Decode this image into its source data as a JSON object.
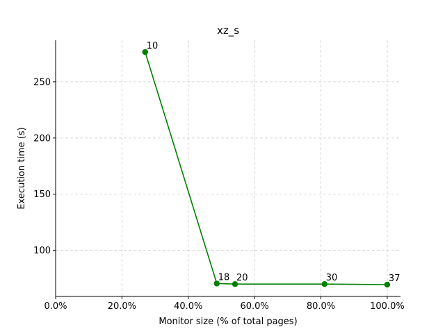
{
  "chart_data": {
    "type": "line",
    "title": "xz_s",
    "xlabel": "Monitor size (% of total pages)",
    "ylabel": "Execution time (s)",
    "xlim": [
      0,
      104
    ],
    "ylim": [
      59,
      287
    ],
    "x_ticks": [
      0,
      20,
      40,
      60,
      80,
      100
    ],
    "x_tick_labels": [
      "0.0%",
      "20.0%",
      "40.0%",
      "60.0%",
      "80.0%",
      "100.0%"
    ],
    "y_ticks": [
      100,
      150,
      200,
      250
    ],
    "y_tick_labels": [
      "100",
      "150",
      "200",
      "250"
    ],
    "grid": true,
    "series": [
      {
        "color": "#008000",
        "x": [
          27.0,
          48.6,
          54.1,
          81.1,
          100.0
        ],
        "y": [
          276.5,
          70.5,
          70.0,
          70.0,
          69.5
        ],
        "point_labels": [
          "10",
          "18",
          "20",
          "30",
          "37"
        ]
      }
    ]
  }
}
